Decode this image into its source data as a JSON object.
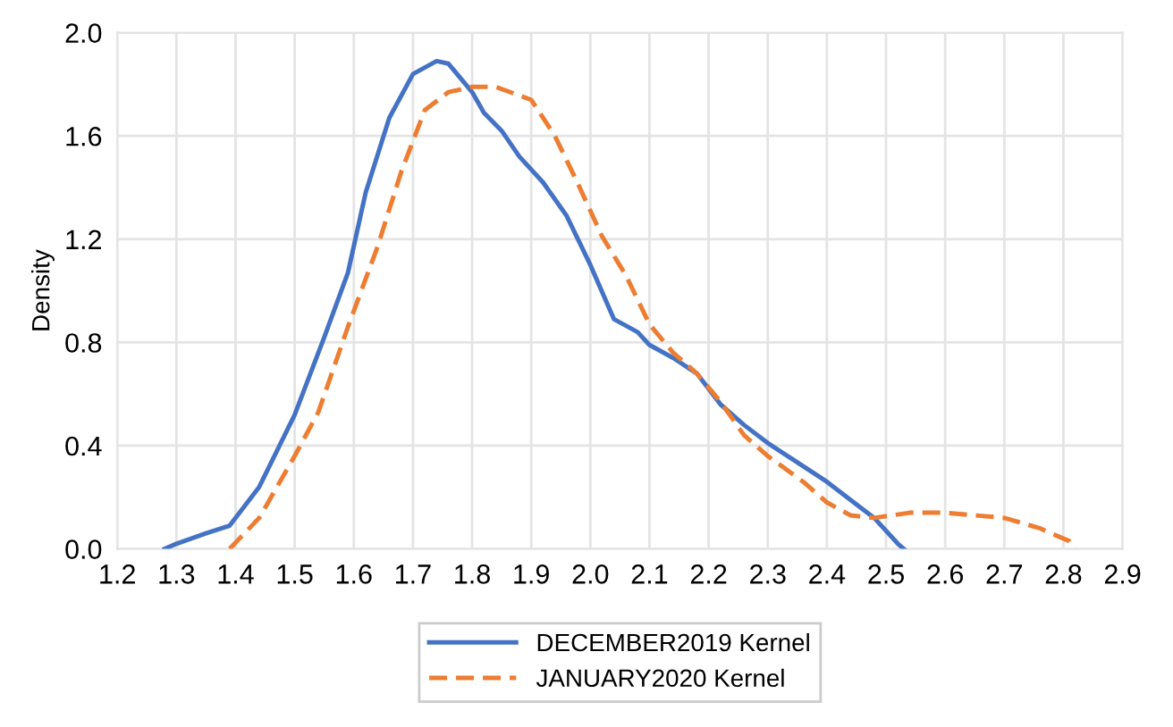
{
  "chart_data": {
    "type": "line",
    "ylabel": "Density",
    "xlim": [
      1.2,
      2.9
    ],
    "xticks": [
      {
        "value": 1.2,
        "label": "1.2"
      },
      {
        "value": 1.3,
        "label": "1.3"
      },
      {
        "value": 1.4,
        "label": "1.4"
      },
      {
        "value": 1.5,
        "label": "1.5"
      },
      {
        "value": 1.6,
        "label": "1.6"
      },
      {
        "value": 1.7,
        "label": "1.7"
      },
      {
        "value": 1.8,
        "label": "1.8"
      },
      {
        "value": 1.9,
        "label": "1.9"
      },
      {
        "value": 2.0,
        "label": "2.0"
      },
      {
        "value": 2.1,
        "label": "2.1"
      },
      {
        "value": 2.2,
        "label": "2.2"
      },
      {
        "value": 2.3,
        "label": "2.3"
      },
      {
        "value": 2.4,
        "label": "2.4"
      },
      {
        "value": 2.5,
        "label": "2.5"
      },
      {
        "value": 2.6,
        "label": "2.6"
      },
      {
        "value": 2.7,
        "label": "2.7"
      },
      {
        "value": 2.8,
        "label": "2.8"
      },
      {
        "value": 2.9,
        "label": "2.9"
      }
    ],
    "ylim": [
      0,
      2.0
    ],
    "yticks": [
      {
        "value": 0,
        "label": "0.0"
      },
      {
        "value": 0.4,
        "label": "0.4"
      },
      {
        "value": 0.8,
        "label": "0.8"
      },
      {
        "value": 1.2,
        "label": "1.2"
      },
      {
        "value": 1.6,
        "label": "1.6"
      },
      {
        "value": 2.0,
        "label": "2.0"
      }
    ],
    "grid": true,
    "legend": "bottom",
    "marker": "none",
    "series": [
      {
        "name": "DECEMBER2019 Kernel",
        "color": "#4472c4",
        "line_style": "solid",
        "x": [
          1.28,
          1.3,
          1.35,
          1.39,
          1.44,
          1.5,
          1.55,
          1.59,
          1.62,
          1.66,
          1.7,
          1.74,
          1.76,
          1.8,
          1.82,
          1.85,
          1.88,
          1.92,
          1.96,
          2.0,
          2.04,
          2.08,
          2.1,
          2.14,
          2.18,
          2.22,
          2.26,
          2.3,
          2.34,
          2.4,
          2.44,
          2.48,
          2.52,
          2.53
        ],
        "values": [
          0,
          0.02,
          0.06,
          0.09,
          0.24,
          0.52,
          0.82,
          1.07,
          1.38,
          1.67,
          1.84,
          1.89,
          1.88,
          1.77,
          1.69,
          1.62,
          1.52,
          1.42,
          1.29,
          1.1,
          0.89,
          0.84,
          0.79,
          0.74,
          0.68,
          0.56,
          0.48,
          0.41,
          0.35,
          0.26,
          0.19,
          0.12,
          0.02,
          0
        ]
      },
      {
        "name": "JANUARY2020 Kernel",
        "color": "#ed7d31",
        "line_style": "dashed",
        "x": [
          1.39,
          1.44,
          1.5,
          1.54,
          1.59,
          1.64,
          1.68,
          1.72,
          1.76,
          1.8,
          1.84,
          1.9,
          1.94,
          1.98,
          2.02,
          2.06,
          2.1,
          2.14,
          2.18,
          2.22,
          2.26,
          2.3,
          2.36,
          2.4,
          2.44,
          2.48,
          2.54,
          2.6,
          2.7,
          2.76,
          2.81,
          2.82
        ],
        "values": [
          0,
          0.12,
          0.36,
          0.53,
          0.86,
          1.17,
          1.46,
          1.7,
          1.77,
          1.79,
          1.79,
          1.74,
          1.6,
          1.41,
          1.21,
          1.06,
          0.87,
          0.76,
          0.68,
          0.57,
          0.44,
          0.36,
          0.26,
          0.18,
          0.13,
          0.12,
          0.14,
          0.14,
          0.12,
          0.08,
          0.03,
          0
        ]
      }
    ]
  }
}
